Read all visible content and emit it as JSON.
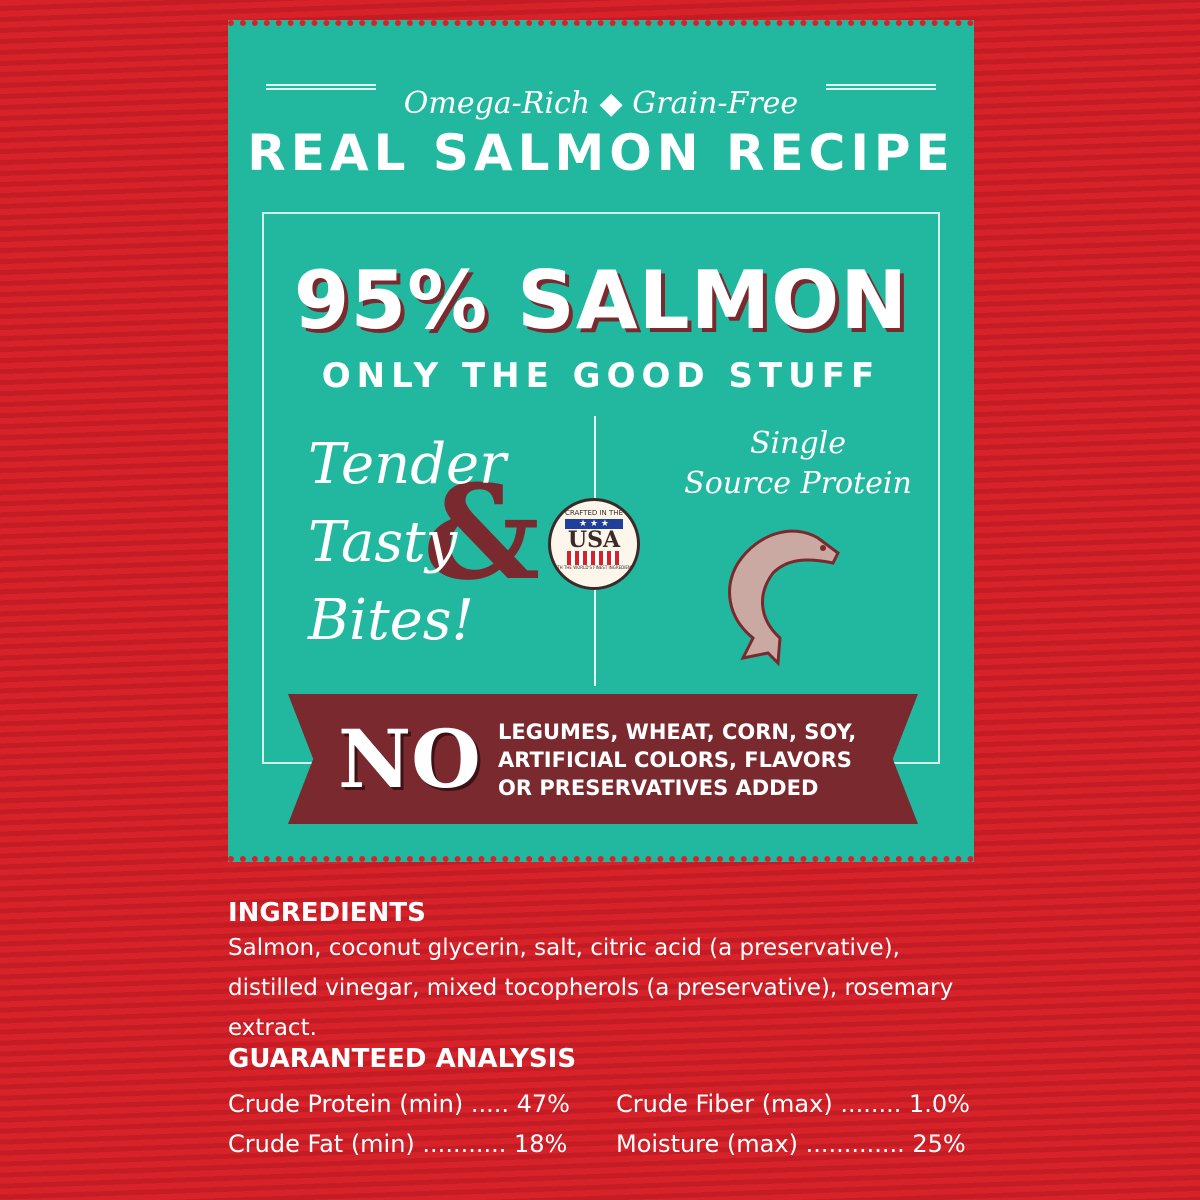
{
  "panel": {
    "tagline_left": "Omega-Rich",
    "tagline_sep": "◆",
    "tagline_right": "Grain-Free",
    "title": "REAL SALMON RECIPE",
    "headline": "95% SALMON",
    "subhead": "ONLY THE GOOD STUFF",
    "tender": [
      "Tender",
      "Tasty",
      "Bites!"
    ],
    "amp": "&",
    "badge": {
      "top": "CRAFTED IN THE",
      "stars": "★ ★ ★",
      "main": "USA",
      "bottom": "WITH THE WORLD'S FINEST INGREDIENTS"
    },
    "single": [
      "Single",
      "Source Protein"
    ],
    "no_banner": {
      "no": "NO",
      "lines": [
        "LEGUMES, WHEAT, CORN, SOY,",
        "ARTIFICIAL COLORS, FLAVORS",
        "OR PRESERVATIVES ADDED"
      ]
    }
  },
  "ingredients": {
    "heading": "INGREDIENTS",
    "text": "Salmon, coconut glycerin, salt, citric acid (a preservative), distilled vinegar, mixed tocopherols (a preservative), rosemary extract."
  },
  "analysis": {
    "heading": "GUARANTEED ANALYSIS",
    "items": [
      "Crude Protein  (min) ..... 47%",
      "Crude Fiber  (max) ........ 1.0%",
      "Crude Fat  (min) ........... 18%",
      "Moisture  (max) ............. 25%"
    ]
  },
  "colors": {
    "background": "#d8222a",
    "panel": "#22b8a0",
    "banner": "#7a2a2e"
  }
}
